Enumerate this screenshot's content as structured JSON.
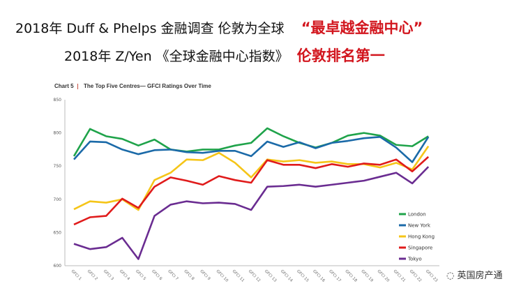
{
  "slide": {
    "line1_text": "2018年 Duff & Phelps 金融调查 伦敦为全球",
    "line1_highlight": "“最卓越金融中心”",
    "line2_text": "2018年 Z/Yen 《全球金融中心指数》",
    "line2_highlight": "伦敦排名第一",
    "highlight_color": "#d2161e",
    "watermark": "英国房产通"
  },
  "chart_data": {
    "type": "line",
    "title_prefix": "Chart 5",
    "title": "The Top Five Centres— GFCI Ratings Over Time",
    "ylim": [
      600,
      850
    ],
    "yticks": [
      600,
      650,
      700,
      750,
      800,
      850
    ],
    "grid": false,
    "legend": "bottom-right",
    "categories": [
      "GFCI 1",
      "GFCI 2",
      "GFCI 3",
      "GFCI 4",
      "GFCI 5",
      "GFCI 6",
      "GFCI 7",
      "GFCI 8",
      "GFCI 9",
      "GFCI 10",
      "GFCI 11",
      "GFCI 12",
      "GFCI 13",
      "GFCI 14",
      "GFCI 15",
      "GFCI 16",
      "GFCI 17",
      "GFCI 18",
      "GFCI 19",
      "GFCI 20",
      "GFCI 21",
      "GFCI 22",
      "GFCI 23"
    ],
    "series": [
      {
        "name": "London",
        "color": "#1fa34a",
        "values": [
          765,
          806,
          795,
          791,
          781,
          790,
          775,
          772,
          775,
          775,
          781,
          785,
          807,
          795,
          785,
          778,
          785,
          796,
          800,
          796,
          782,
          780,
          795
        ]
      },
      {
        "name": "New York",
        "color": "#1b6aa8",
        "values": [
          760,
          787,
          786,
          775,
          768,
          774,
          775,
          771,
          770,
          773,
          773,
          765,
          787,
          779,
          786,
          777,
          785,
          788,
          792,
          794,
          778,
          756,
          794
        ]
      },
      {
        "name": "Hong Kong",
        "color": "#f5c518",
        "values": [
          685,
          697,
          695,
          700,
          684,
          729,
          740,
          760,
          759,
          770,
          755,
          733,
          760,
          757,
          759,
          755,
          757,
          753,
          753,
          748,
          755,
          745,
          780
        ]
      },
      {
        "name": "Singapore",
        "color": "#e01b1b",
        "values": [
          662,
          673,
          675,
          701,
          687,
          719,
          733,
          728,
          722,
          735,
          729,
          725,
          759,
          752,
          752,
          747,
          753,
          749,
          754,
          752,
          760,
          742,
          764
        ]
      },
      {
        "name": "Tokyo",
        "color": "#6a2c91",
        "values": [
          633,
          625,
          628,
          642,
          610,
          675,
          692,
          697,
          694,
          695,
          693,
          684,
          719,
          720,
          722,
          719,
          722,
          725,
          728,
          734,
          740,
          724,
          749
        ]
      }
    ]
  }
}
